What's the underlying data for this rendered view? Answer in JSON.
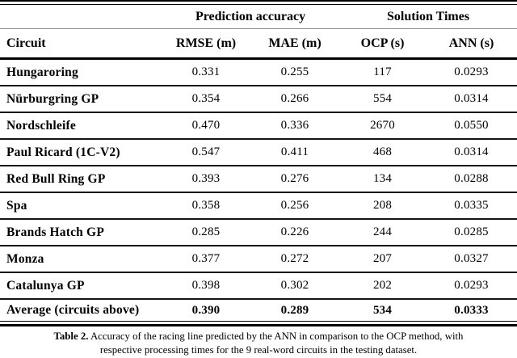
{
  "page": {
    "background": "#ffffff",
    "ink": "#000000",
    "light_rule": "#8f8f8f"
  },
  "table": {
    "group_headers": [
      "Prediction accuracy",
      "Solution Times"
    ],
    "columns": [
      "Circuit",
      "RMSE (m)",
      "MAE (m)",
      "OCP (s)",
      "ANN (s)"
    ],
    "rows": [
      {
        "circuit": "Hungaroring",
        "rmse": "0.331",
        "mae": "0.255",
        "ocp": "117",
        "ann": "0.0293"
      },
      {
        "circuit": "Nürburgring GP",
        "rmse": "0.354",
        "mae": "0.266",
        "ocp": "554",
        "ann": "0.0314"
      },
      {
        "circuit": "Nordschleife",
        "rmse": "0.470",
        "mae": "0.336",
        "ocp": "2670",
        "ann": "0.0550"
      },
      {
        "circuit": "Paul Ricard (1C-V2)",
        "rmse": "0.547",
        "mae": "0.411",
        "ocp": "468",
        "ann": "0.0314"
      },
      {
        "circuit": "Red Bull Ring GP",
        "rmse": "0.393",
        "mae": "0.276",
        "ocp": "134",
        "ann": "0.0288"
      },
      {
        "circuit": "Spa",
        "rmse": "0.358",
        "mae": "0.256",
        "ocp": "208",
        "ann": "0.0335"
      },
      {
        "circuit": "Brands Hatch GP",
        "rmse": "0.285",
        "mae": "0.226",
        "ocp": "244",
        "ann": "0.0285"
      },
      {
        "circuit": "Monza",
        "rmse": "0.377",
        "mae": "0.272",
        "ocp": "207",
        "ann": "0.0327"
      },
      {
        "circuit": "Catalunya GP",
        "rmse": "0.398",
        "mae": "0.302",
        "ocp": "202",
        "ann": "0.0293"
      },
      {
        "circuit": "Average (circuits above)",
        "rmse": "0.390",
        "mae": "0.289",
        "ocp": "534",
        "ann": "0.0333"
      }
    ],
    "caption": {
      "label": "Table 2.",
      "text": "Accuracy of the racing line predicted by the ANN in comparison to the OCP method, with respective processing times for the 9 real-word circuits in the testing dataset."
    }
  }
}
